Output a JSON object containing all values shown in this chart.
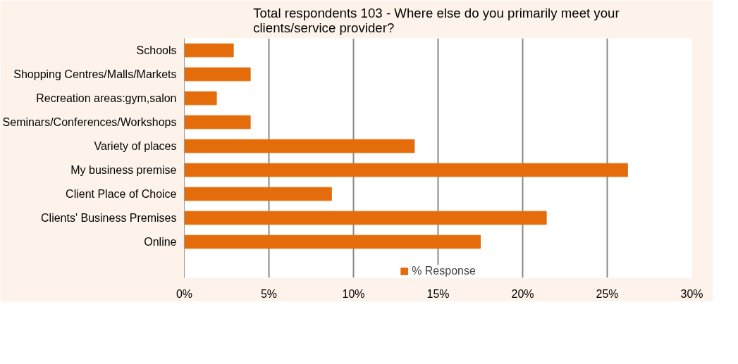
{
  "chart_data": {
    "type": "bar",
    "orientation": "horizontal",
    "title": "Total respondents 103 - Where  else do you primarily meet your clients/service provider?",
    "categories": [
      "Schools",
      "Shopping Centres/Malls/Markets",
      "Recreation areas:gym,salon",
      "Seminars/Conferences/Workshops",
      "Variety of places",
      "My business premise",
      "Client Place of Choice",
      "Clients' Business Premises",
      "Online"
    ],
    "series": [
      {
        "name": "% Response",
        "color": "#e46c0a",
        "values": [
          2.9,
          3.9,
          1.9,
          3.9,
          13.6,
          26.2,
          8.7,
          21.4,
          17.5
        ]
      }
    ],
    "xlim": [
      0,
      30
    ],
    "xticks": [
      {
        "value": 0,
        "label": "0%"
      },
      {
        "value": 5,
        "label": "5%"
      },
      {
        "value": 10,
        "label": "10%"
      },
      {
        "value": 15,
        "label": "15%"
      },
      {
        "value": 20,
        "label": "20%"
      },
      {
        "value": 25,
        "label": "25%"
      },
      {
        "value": 30,
        "label": "30%"
      }
    ],
    "grid": "x",
    "legend": "bottom"
  }
}
